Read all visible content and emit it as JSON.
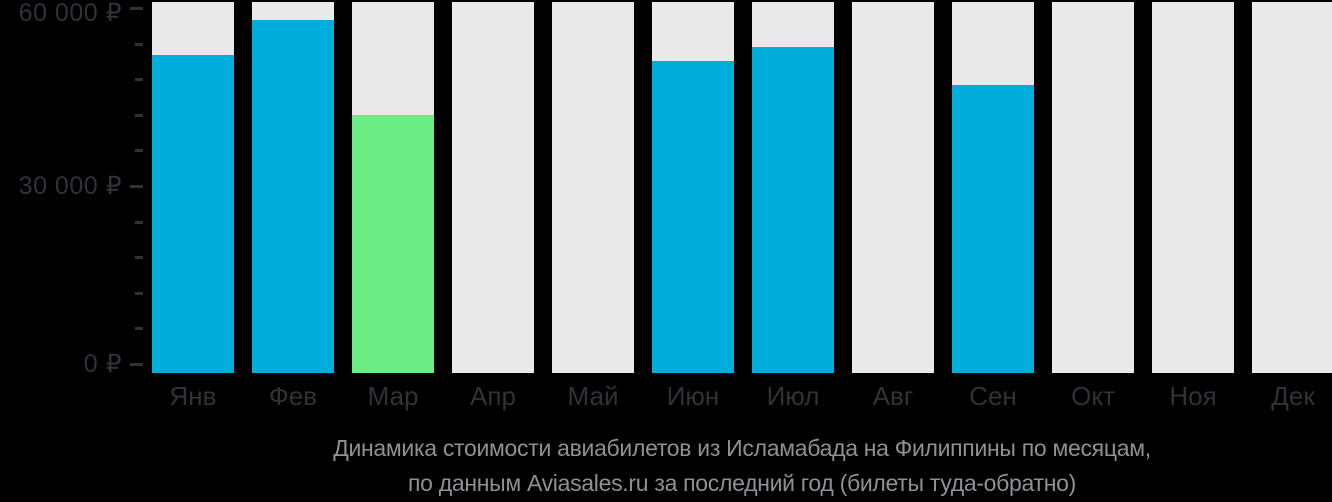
{
  "chart_data": {
    "type": "bar",
    "title_line1": "Динамика стоимости авиабилетов из Исламабада на Филиппины по месяцам,",
    "title_line2": "по данным Aviasales.ru за последний год (билеты туда-обратно)",
    "categories": [
      "Янв",
      "Фев",
      "Мар",
      "Апр",
      "Май",
      "Июн",
      "Июл",
      "Авг",
      "Сен",
      "Окт",
      "Ноя",
      "Дек"
    ],
    "values": [
      52000,
      58000,
      42000,
      null,
      null,
      51000,
      53500,
      null,
      47000,
      null,
      null,
      null
    ],
    "highlighted_category": "Мар",
    "highlighted_value": 42000,
    "currency": "₽",
    "y_tick_labels": [
      "60 000 ₽",
      "30 000 ₽",
      "0 ₽"
    ],
    "ylim": [
      0,
      60000
    ],
    "y_major_step": 30000,
    "y_minor_step": 6000,
    "xlabel": "",
    "ylabel": "",
    "legend": "none",
    "grid": "off",
    "colors": {
      "bar": "#00ADDB",
      "bar_highlight": "#6CEC85",
      "bar_no_data": "#E9E9E9",
      "axis_text": "#2E3338",
      "title_text": "#8E9194",
      "background": "#000000"
    }
  }
}
